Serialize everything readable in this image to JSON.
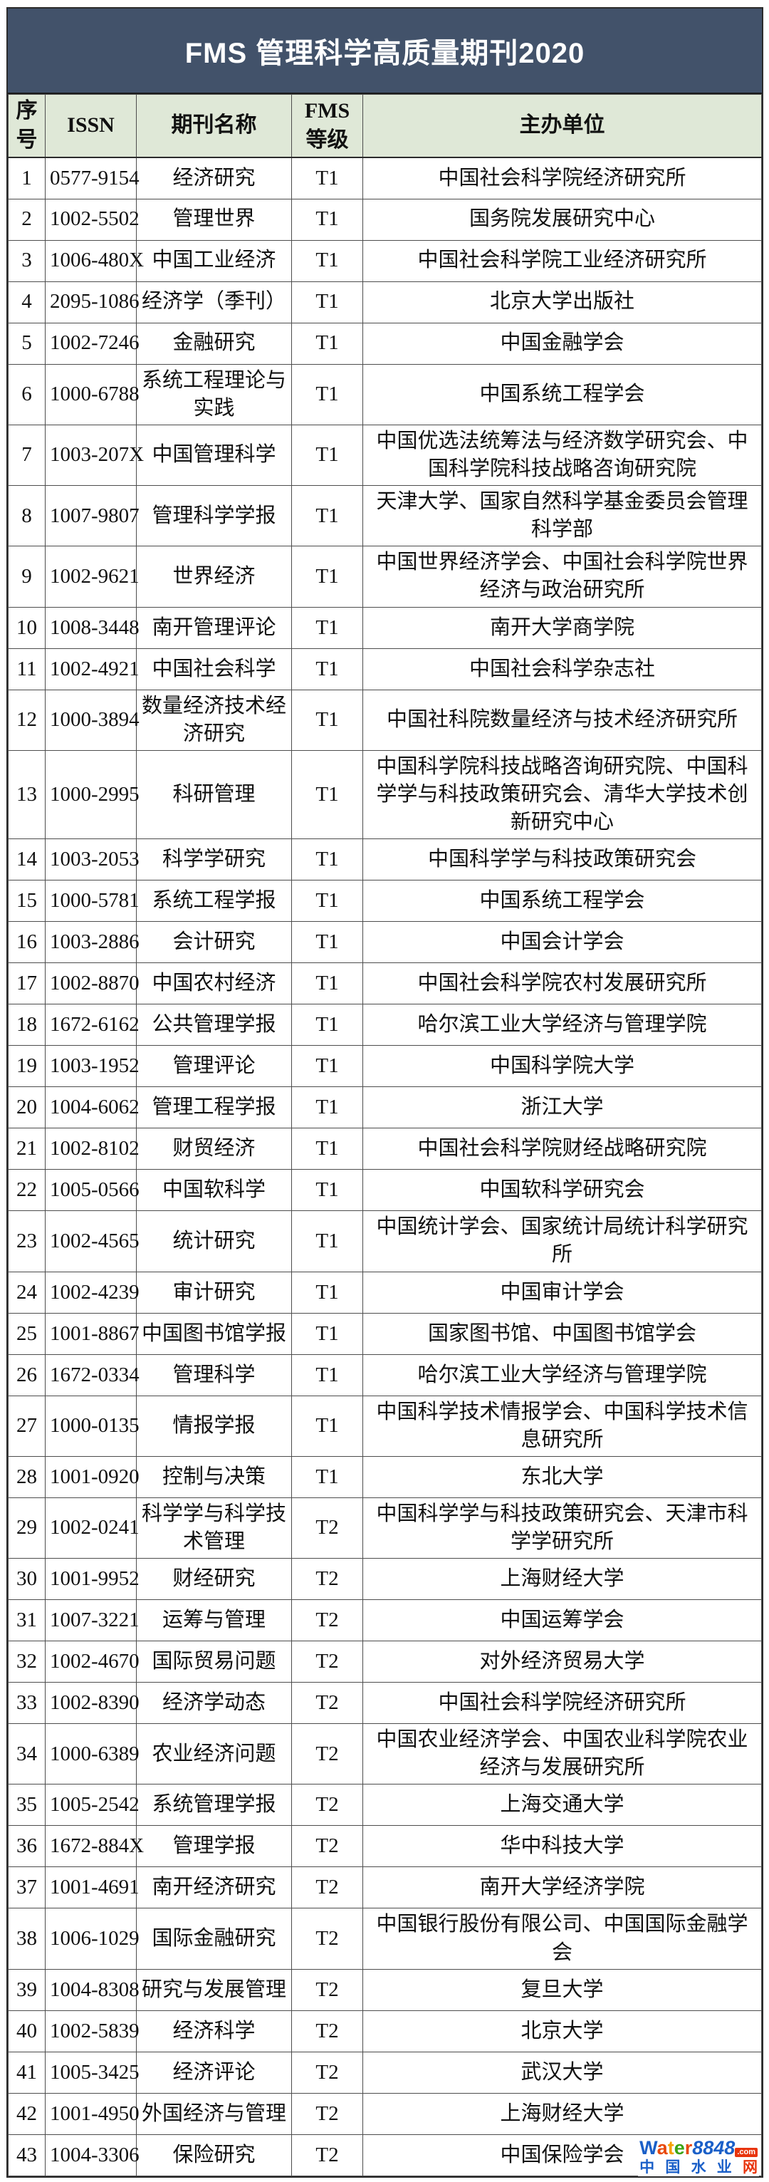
{
  "title": "FMS 管理科学高质量期刊2020",
  "columns": [
    "序号",
    "ISSN",
    "期刊名称",
    "FMS等级",
    "主办单位"
  ],
  "rows": [
    [
      "1",
      "0577-9154",
      "经济研究",
      "T1",
      "中国社会科学院经济研究所"
    ],
    [
      "2",
      "1002-5502",
      "管理世界",
      "T1",
      "国务院发展研究中心"
    ],
    [
      "3",
      "1006-480X",
      "中国工业经济",
      "T1",
      "中国社会科学院工业经济研究所"
    ],
    [
      "4",
      "2095-1086",
      "经济学（季刊）",
      "T1",
      "北京大学出版社"
    ],
    [
      "5",
      "1002-7246",
      "金融研究",
      "T1",
      "中国金融学会"
    ],
    [
      "6",
      "1000-6788",
      "系统工程理论与实践",
      "T1",
      "中国系统工程学会"
    ],
    [
      "7",
      "1003-207X",
      "中国管理科学",
      "T1",
      "中国优选法统筹法与经济数学研究会、中国科学院科技战略咨询研究院"
    ],
    [
      "8",
      "1007-9807",
      "管理科学学报",
      "T1",
      "天津大学、国家自然科学基金委员会管理科学部"
    ],
    [
      "9",
      "1002-9621",
      "世界经济",
      "T1",
      "中国世界经济学会、中国社会科学院世界经济与政治研究所"
    ],
    [
      "10",
      "1008-3448",
      "南开管理评论",
      "T1",
      "南开大学商学院"
    ],
    [
      "11",
      "1002-4921",
      "中国社会科学",
      "T1",
      "中国社会科学杂志社"
    ],
    [
      "12",
      "1000-3894",
      "数量经济技术经济研究",
      "T1",
      "中国社科院数量经济与技术经济研究所"
    ],
    [
      "13",
      "1000-2995",
      "科研管理",
      "T1",
      "中国科学院科技战略咨询研究院、中国科学学与科技政策研究会、清华大学技术创新研究中心"
    ],
    [
      "14",
      "1003-2053",
      "科学学研究",
      "T1",
      "中国科学学与科技政策研究会"
    ],
    [
      "15",
      "1000-5781",
      "系统工程学报",
      "T1",
      "中国系统工程学会"
    ],
    [
      "16",
      "1003-2886",
      "会计研究",
      "T1",
      "中国会计学会"
    ],
    [
      "17",
      "1002-8870",
      "中国农村经济",
      "T1",
      "中国社会科学院农村发展研究所"
    ],
    [
      "18",
      "1672-6162",
      "公共管理学报",
      "T1",
      "哈尔滨工业大学经济与管理学院"
    ],
    [
      "19",
      "1003-1952",
      "管理评论",
      "T1",
      "中国科学院大学"
    ],
    [
      "20",
      "1004-6062",
      "管理工程学报",
      "T1",
      "浙江大学"
    ],
    [
      "21",
      "1002-8102",
      "财贸经济",
      "T1",
      "中国社会科学院财经战略研究院"
    ],
    [
      "22",
      "1005-0566",
      "中国软科学",
      "T1",
      "中国软科学研究会"
    ],
    [
      "23",
      "1002-4565",
      "统计研究",
      "T1",
      "中国统计学会、国家统计局统计科学研究所"
    ],
    [
      "24",
      "1002-4239",
      "审计研究",
      "T1",
      "中国审计学会"
    ],
    [
      "25",
      "1001-8867",
      "中国图书馆学报",
      "T1",
      "国家图书馆、中国图书馆学会"
    ],
    [
      "26",
      "1672-0334",
      "管理科学",
      "T1",
      "哈尔滨工业大学经济与管理学院"
    ],
    [
      "27",
      "1000-0135",
      "情报学报",
      "T1",
      "中国科学技术情报学会、中国科学技术信息研究所"
    ],
    [
      "28",
      "1001-0920",
      "控制与决策",
      "T1",
      "东北大学"
    ],
    [
      "29",
      "1002-0241",
      "科学学与科学技术管理",
      "T2",
      "中国科学学与科技政策研究会、天津市科学学研究所"
    ],
    [
      "30",
      "1001-9952",
      "财经研究",
      "T2",
      "上海财经大学"
    ],
    [
      "31",
      "1007-3221",
      "运筹与管理",
      "T2",
      "中国运筹学会"
    ],
    [
      "32",
      "1002-4670",
      "国际贸易问题",
      "T2",
      "对外经济贸易大学"
    ],
    [
      "33",
      "1002-8390",
      "经济学动态",
      "T2",
      "中国社会科学院经济研究所"
    ],
    [
      "34",
      "1000-6389",
      "农业经济问题",
      "T2",
      "中国农业经济学会、中国农业科学院农业经济与发展研究所"
    ],
    [
      "35",
      "1005-2542",
      "系统管理学报",
      "T2",
      "上海交通大学"
    ],
    [
      "36",
      "1672-884X",
      "管理学报",
      "T2",
      "华中科技大学"
    ],
    [
      "37",
      "1001-4691",
      "南开经济研究",
      "T2",
      "南开大学经济学院"
    ],
    [
      "38",
      "1006-1029",
      "国际金融研究",
      "T2",
      "中国银行股份有限公司、中国国际金融学会"
    ],
    [
      "39",
      "1004-8308",
      "研究与发展管理",
      "T2",
      "复旦大学"
    ],
    [
      "40",
      "1002-5839",
      "经济科学",
      "T2",
      "北京大学"
    ],
    [
      "41",
      "1005-3425",
      "经济评论",
      "T2",
      "武汉大学"
    ],
    [
      "42",
      "1001-4950",
      "外国经济与管理",
      "T2",
      "上海财经大学"
    ],
    [
      "43",
      "1004-3306",
      "保险研究",
      "T2",
      "中国保险学会"
    ]
  ],
  "watermark": {
    "brand_letters": [
      {
        "ch": "W",
        "color": "#1a5fc8"
      },
      {
        "ch": "a",
        "color": "#e8490c"
      },
      {
        "ch": "t",
        "color": "#f5a000"
      },
      {
        "ch": "e",
        "color": "#3ca414"
      },
      {
        "ch": "r",
        "color": "#e8490c"
      }
    ],
    "brand_number": "8848",
    "brand_number_color": "#1a5fc8",
    "dotcom": ".com",
    "dotcom_bg": "#e8340c",
    "subtitle_chars": [
      {
        "ch": "中",
        "color": "#1a5fc8"
      },
      {
        "ch": "国",
        "color": "#1a5fc8"
      },
      {
        "ch": "水",
        "color": "#1a5fc8"
      },
      {
        "ch": "业",
        "color": "#1a5fc8"
      },
      {
        "ch": "网",
        "color": "#e8340c"
      }
    ]
  },
  "colors": {
    "title_bar_bg": "#42526a",
    "title_text": "#ffffff",
    "header_row_bg": "#dfe8d7",
    "grid_border": "#4d4d4d",
    "outer_border": "#2b2b2b"
  }
}
